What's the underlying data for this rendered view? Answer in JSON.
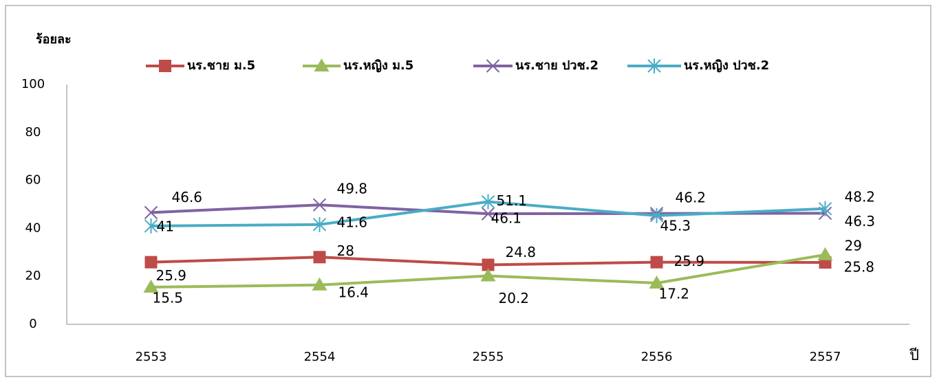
{
  "chart_data": {
    "type": "line",
    "y_label": "ร้อยละ",
    "x_label": "ปี",
    "categories": [
      "2553",
      "2554",
      "2555",
      "2556",
      "2557"
    ],
    "series": [
      {
        "name": "นร.ชาย ม.5",
        "color": "#be4b48",
        "marker": "square",
        "values": [
          25.9,
          28,
          24.8,
          25.9,
          25.8
        ]
      },
      {
        "name": "นร.หญิง ม.5",
        "color": "#9bbb59",
        "marker": "triangle",
        "values": [
          15.5,
          16.4,
          20.2,
          17.2,
          29
        ]
      },
      {
        "name": "นร.ชาย ปวช.2",
        "color": "#7f63a1",
        "marker": "x",
        "values": [
          46.6,
          49.8,
          46.1,
          46.2,
          46.3
        ]
      },
      {
        "name": "นร.หญิง ปวช.2",
        "color": "#4aacc6",
        "marker": "asterisk",
        "values": [
          41,
          41.6,
          51.1,
          45.3,
          48.2
        ]
      }
    ],
    "ylim": [
      0,
      100
    ],
    "yticks": [
      0,
      20,
      40,
      60,
      80,
      100
    ],
    "grid": false,
    "legend": "top"
  }
}
